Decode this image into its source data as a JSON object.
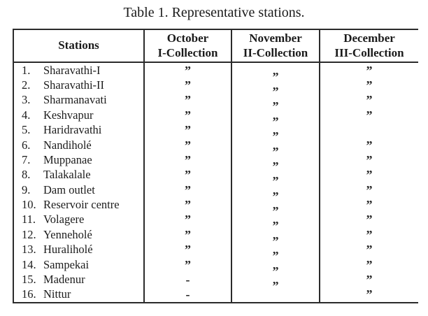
{
  "title": "Table 1. Representative stations.",
  "table": {
    "header": {
      "stations": "Stations",
      "col2_line1": "October",
      "col2_line2": "I-Collection",
      "col3_line1": "November",
      "col3_line2": "II-Collection",
      "col4_line1": "December",
      "col4_line2": "III-Collection"
    },
    "marks": {
      "ditto": "”",
      "dash": "-",
      "blank": ""
    },
    "rows": [
      {
        "num": "1.",
        "station": "Sharavathi-I",
        "october": "”",
        "november": "”",
        "december": "”"
      },
      {
        "num": "2.",
        "station": "Sharavathi-II",
        "october": "”",
        "november": "”",
        "december": "”"
      },
      {
        "num": "3.",
        "station": "Sharmanavati",
        "october": "”",
        "november": "”",
        "december": "”"
      },
      {
        "num": "4.",
        "station": "Keshvapur",
        "october": "”",
        "november": "”",
        "december": "”"
      },
      {
        "num": "5.",
        "station": "Haridravathi",
        "october": "”",
        "november": "”",
        "december": ""
      },
      {
        "num": "6.",
        "station": "Nandiholé",
        "october": "”",
        "november": "”",
        "december": "”"
      },
      {
        "num": "7.",
        "station": "Muppanae",
        "october": "”",
        "november": "”",
        "december": "”"
      },
      {
        "num": "8.",
        "station": "Talakalale",
        "october": "”",
        "november": "”",
        "december": "”"
      },
      {
        "num": "9.",
        "station": "Dam outlet",
        "october": "”",
        "november": "”",
        "december": "”"
      },
      {
        "num": "10.",
        "station": "Reservoir centre",
        "october": "”",
        "november": "”",
        "december": "”"
      },
      {
        "num": "11.",
        "station": "Volagere",
        "october": "”",
        "november": "”",
        "december": "”"
      },
      {
        "num": "12.",
        "station": "Yenneholé",
        "october": "”",
        "november": "”",
        "december": "”"
      },
      {
        "num": "13.",
        "station": "Huraliholé",
        "october": "”",
        "november": "”",
        "december": "”"
      },
      {
        "num": "14.",
        "station": "Sampekai",
        "october": "”",
        "november": "”",
        "december": "”"
      },
      {
        "num": "15.",
        "station": "Madenur",
        "october": "-",
        "november": "”",
        "december": "”"
      },
      {
        "num": "16.",
        "station": "Nittur",
        "october": "-",
        "november": "",
        "december": "”"
      }
    ]
  }
}
